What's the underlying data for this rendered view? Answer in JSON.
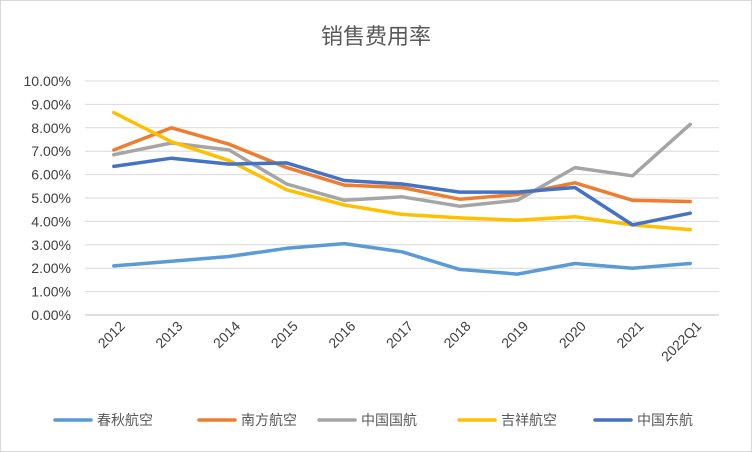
{
  "chart_data": {
    "type": "line",
    "title": "销售费用率",
    "xlabel": "",
    "ylabel": "",
    "ylim": [
      0,
      10
    ],
    "y_ticks": [
      "0.00%",
      "1.00%",
      "2.00%",
      "3.00%",
      "4.00%",
      "5.00%",
      "6.00%",
      "7.00%",
      "8.00%",
      "9.00%",
      "10.00%"
    ],
    "categories": [
      "2012",
      "2013",
      "2014",
      "2015",
      "2016",
      "2017",
      "2018",
      "2019",
      "2020",
      "2021",
      "2022Q1"
    ],
    "legend_position": "bottom",
    "series": [
      {
        "name": "春秋航空",
        "color": "#5b9bd5",
        "values": [
          2.1,
          2.3,
          2.5,
          2.85,
          3.05,
          2.7,
          1.95,
          1.75,
          2.2,
          2.0,
          2.2
        ]
      },
      {
        "name": "南方航空",
        "color": "#ed7d31",
        "values": [
          7.05,
          8.0,
          7.3,
          6.3,
          5.55,
          5.45,
          4.95,
          5.15,
          5.65,
          4.9,
          4.85
        ]
      },
      {
        "name": "中国国航",
        "color": "#a5a5a5",
        "values": [
          6.85,
          7.35,
          7.05,
          5.6,
          4.9,
          5.05,
          4.65,
          4.9,
          6.3,
          5.95,
          8.15
        ]
      },
      {
        "name": "吉祥航空",
        "color": "#ffc000",
        "values": [
          8.65,
          7.4,
          6.6,
          5.35,
          4.7,
          4.3,
          4.15,
          4.05,
          4.2,
          3.85,
          3.65
        ]
      },
      {
        "name": "中国东航",
        "color": "#4472c4",
        "values": [
          6.35,
          6.7,
          6.45,
          6.5,
          5.75,
          5.6,
          5.25,
          5.25,
          5.45,
          3.85,
          4.35
        ]
      }
    ]
  }
}
